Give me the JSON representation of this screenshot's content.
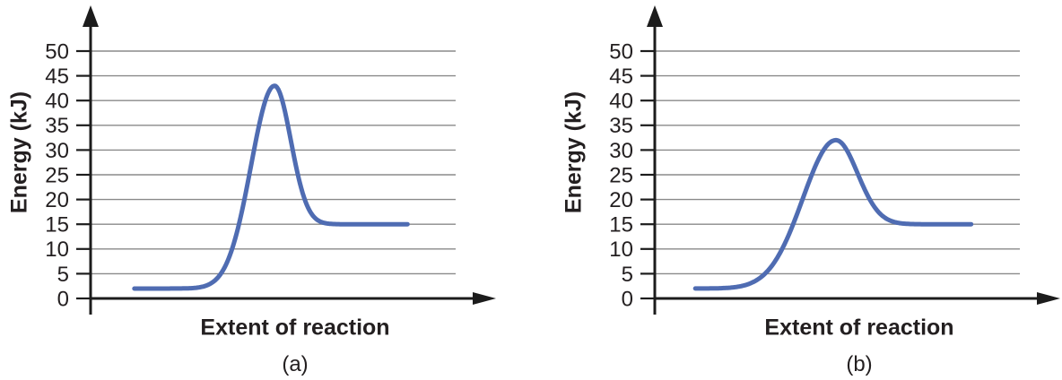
{
  "page": {
    "background_color": "#ffffff",
    "text_color": "#231f20",
    "axis_color": "#1c1c1c",
    "gridline_color": "#8a8a8a"
  },
  "chart_data": [
    {
      "type": "line",
      "caption": "(a)",
      "title": "",
      "xlabel": "Extent of reaction",
      "ylabel": "Energy (kJ)",
      "ylim": [
        0,
        50
      ],
      "yticks": [
        0,
        5,
        10,
        15,
        20,
        25,
        30,
        35,
        40,
        45,
        50
      ],
      "grid": "horizontal gridlines at each y tick",
      "legend": "none",
      "x_axis_style": "arrow axis, no x tick labels",
      "y_axis_style": "arrow axis with outward tick marks",
      "curve": {
        "name": "reaction energy profile (a)",
        "color": "#4f6cb2",
        "reactant_energy_kJ": 2,
        "transition_state_peak_kJ": 43,
        "product_energy_kJ": 15,
        "shape": {
          "start_frac": 0.12,
          "peak_frac": 0.504,
          "end_frac": 0.87,
          "sigma_left_frac": 0.091,
          "sigma_right_frac": 0.063
        }
      }
    },
    {
      "type": "line",
      "caption": "(b)",
      "title": "",
      "xlabel": "Extent of reaction",
      "ylabel": "Energy (kJ)",
      "ylim": [
        0,
        50
      ],
      "yticks": [
        0,
        5,
        10,
        15,
        20,
        25,
        30,
        35,
        40,
        45,
        50
      ],
      "grid": "horizontal gridlines at each y tick",
      "legend": "none",
      "x_axis_style": "arrow axis, no x tick labels",
      "y_axis_style": "arrow axis with outward tick marks",
      "curve": {
        "name": "reaction energy profile (b)",
        "color": "#4f6cb2",
        "reactant_energy_kJ": 2,
        "transition_state_peak_kJ": 32,
        "product_energy_kJ": 15,
        "shape": {
          "start_frac": 0.111,
          "peak_frac": 0.496,
          "end_frac": 0.867,
          "sigma_left_frac": 0.128,
          "sigma_right_frac": 0.084
        }
      }
    }
  ]
}
